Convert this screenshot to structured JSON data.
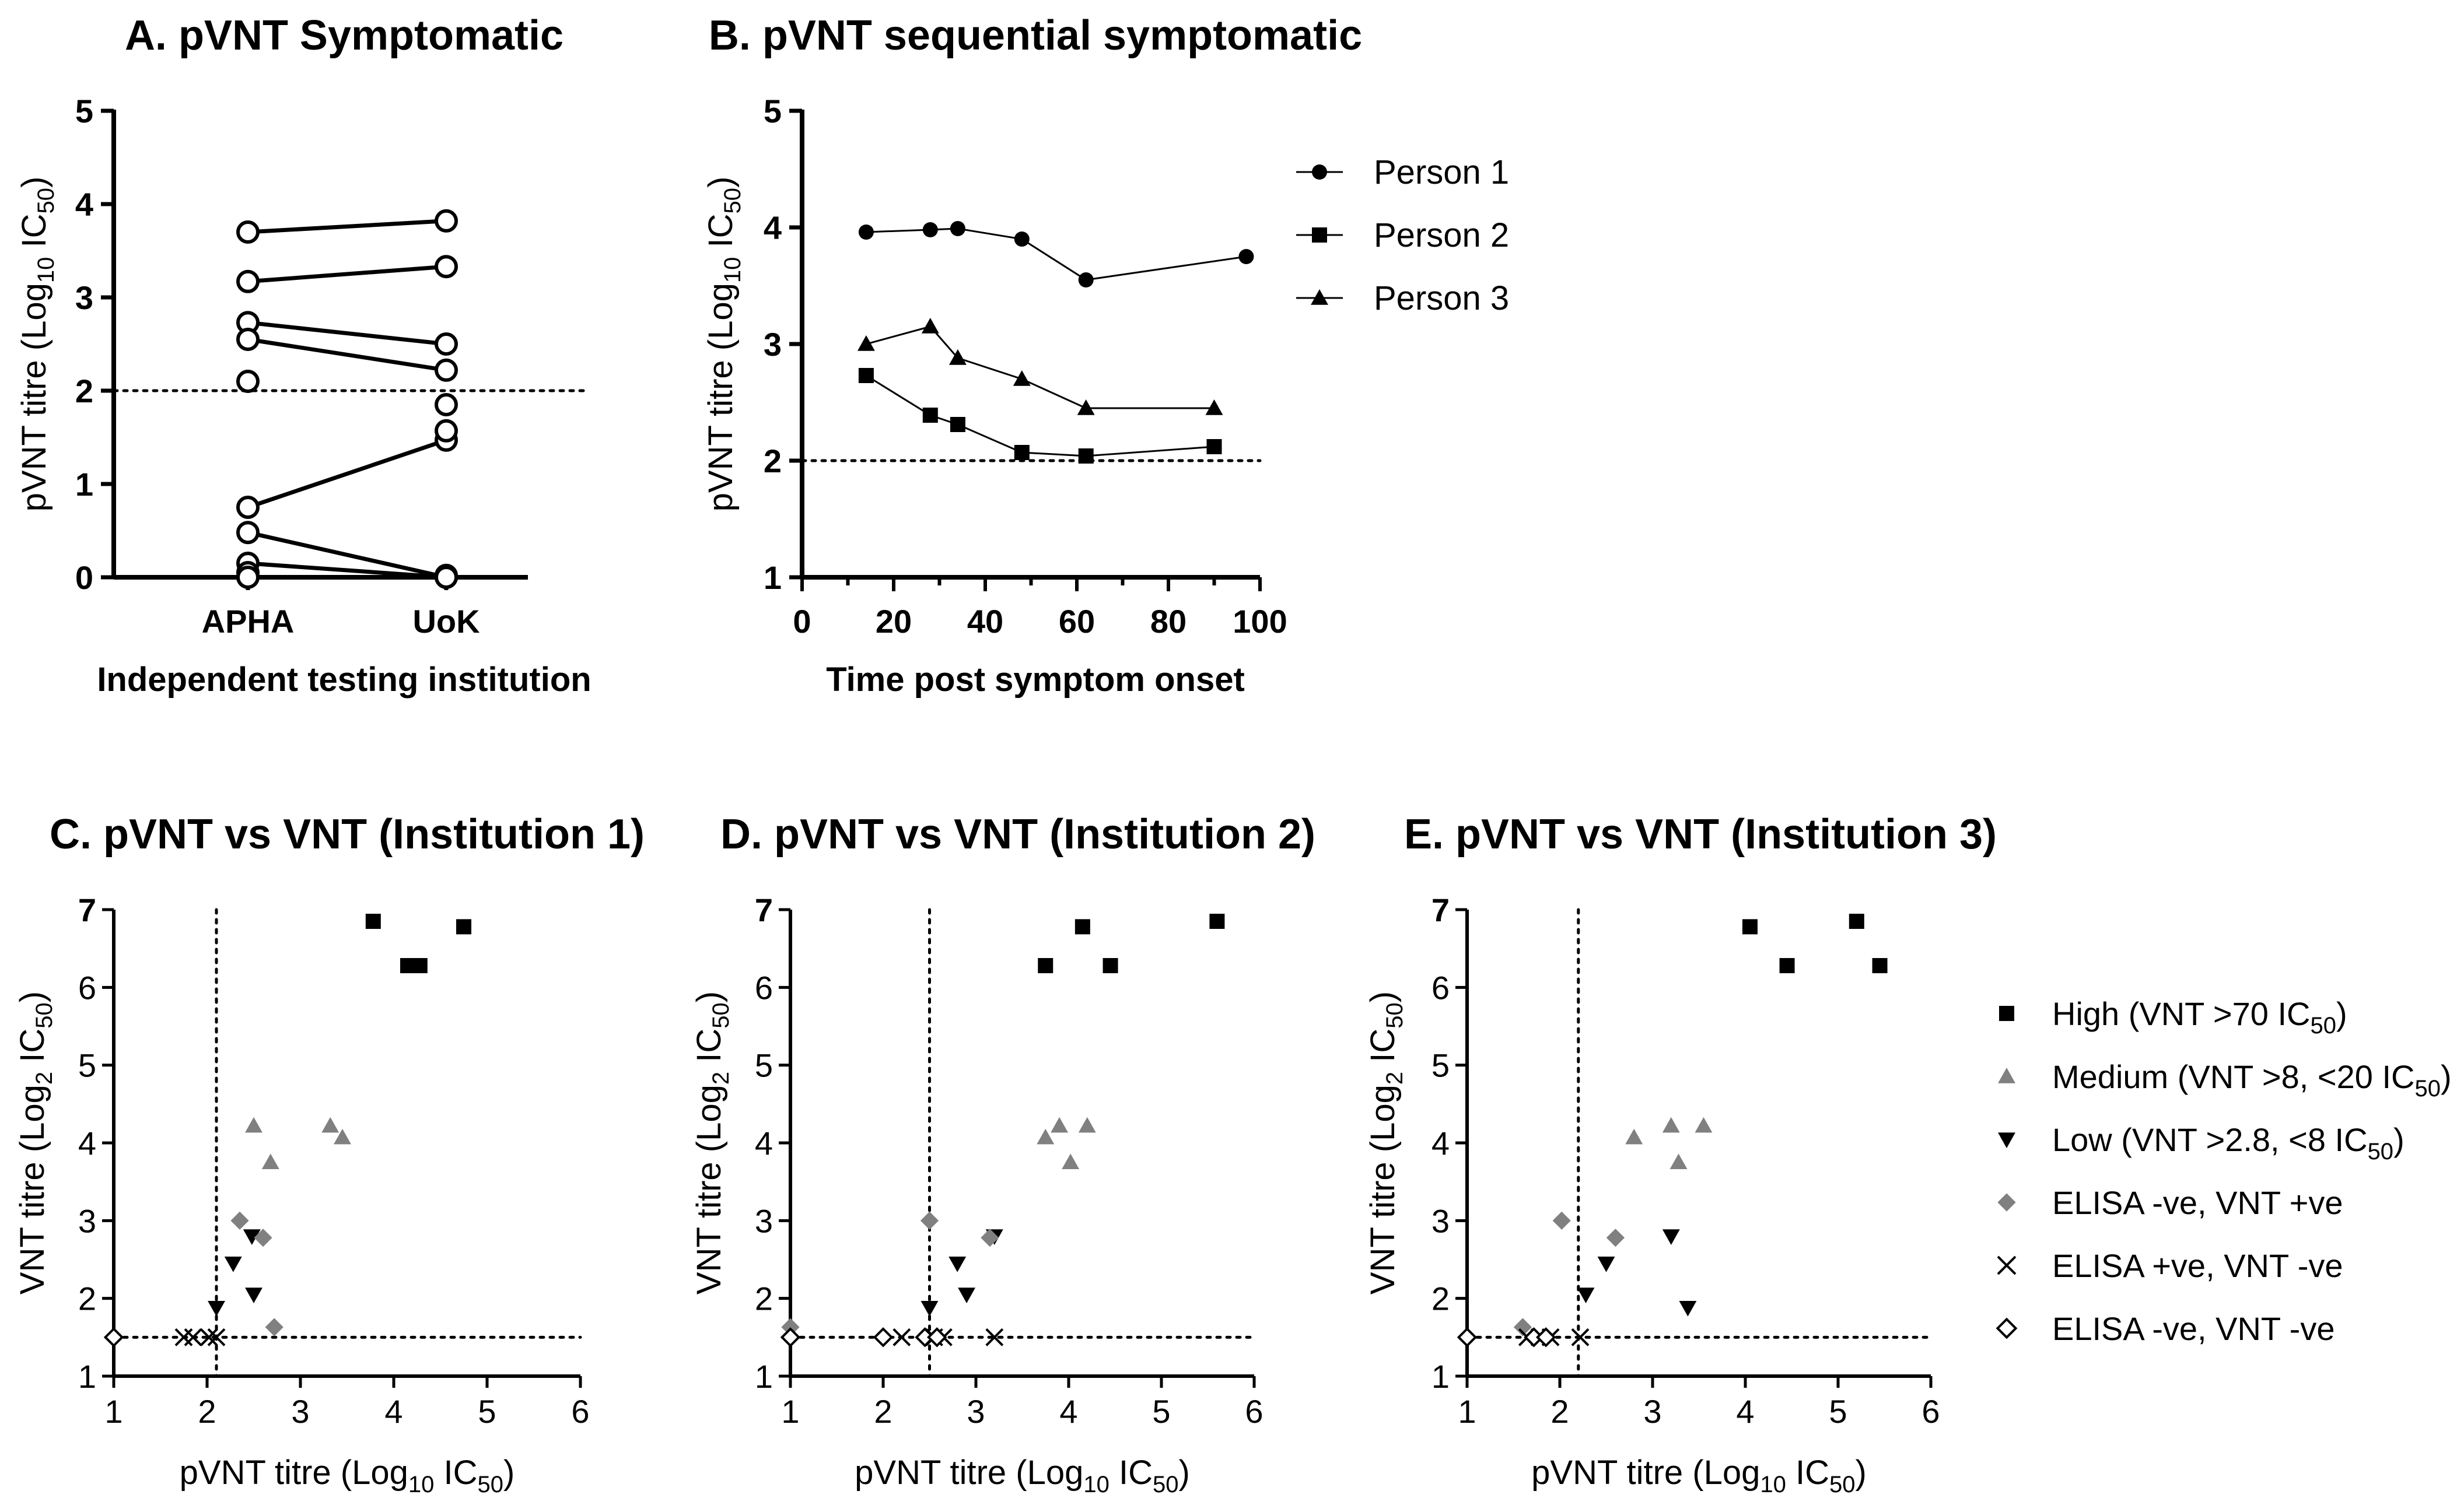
{
  "chart_data": [
    {
      "id": "A",
      "type": "line",
      "title": "A. pVNT Symptomatic",
      "xlabel": "Independent testing institution",
      "ylabel": "pVNT titre (Log10 IC50)",
      "ylabel_parts": {
        "main": "pVNT titre (Log",
        "sub1": "10",
        "mid": " IC",
        "sub2": "50",
        "end": ")"
      },
      "categories": [
        "APHA",
        "UoK"
      ],
      "ylim": [
        0,
        5
      ],
      "yticks": [
        "0",
        "1",
        "2",
        "3",
        "4",
        "5"
      ],
      "threshold": 2,
      "pairs": [
        [
          3.7,
          3.82
        ],
        [
          3.17,
          3.33
        ],
        [
          2.73,
          2.5
        ],
        [
          2.55,
          2.22
        ],
        [
          0.75,
          1.47
        ],
        [
          0.48,
          0.0
        ],
        [
          0.15,
          0.0
        ]
      ],
      "extra_points": {
        "APHA": [
          2.1,
          0.05,
          0.0
        ],
        "UoK": [
          1.85,
          1.57,
          0.02,
          0.0
        ]
      }
    },
    {
      "id": "B",
      "type": "line",
      "title": "B. pVNT sequential symptomatic",
      "xlabel": "Time post symptom onset",
      "ylabel": "pVNT titre (Log10 IC50)",
      "ylabel_parts": {
        "main": "pVNT titre (Log",
        "sub1": "10",
        "mid": " IC",
        "sub2": "50",
        "end": ")"
      },
      "xlim": [
        0,
        100
      ],
      "ylim": [
        1,
        5
      ],
      "xticks": [
        "0",
        "20",
        "40",
        "60",
        "80",
        "100"
      ],
      "yticks": [
        "1",
        "2",
        "3",
        "4",
        "5"
      ],
      "threshold": 2,
      "series": [
        {
          "name": "Person 1",
          "marker": "circle",
          "x": [
            14,
            28,
            34,
            48,
            62,
            97
          ],
          "y": [
            3.96,
            3.98,
            3.99,
            3.9,
            3.55,
            3.75
          ]
        },
        {
          "name": "Person 2",
          "marker": "square",
          "x": [
            14,
            28,
            34,
            48,
            62,
            90
          ],
          "y": [
            2.73,
            2.39,
            2.31,
            2.07,
            2.04,
            2.12
          ]
        },
        {
          "name": "Person 3",
          "marker": "triangle",
          "x": [
            14,
            28,
            34,
            48,
            62,
            90
          ],
          "y": [
            3.0,
            3.15,
            2.88,
            2.7,
            2.45,
            2.45
          ]
        }
      ]
    },
    {
      "id": "C",
      "type": "scatter",
      "title": "C. pVNT vs VNT (Institution 1)",
      "xlabel": "pVNT titre (Log10 IC50)",
      "ylabel": "VNT titre (Log2 IC50)",
      "xlabel_parts": {
        "main": "pVNT titre (Log",
        "sub1": "10",
        "mid": " IC",
        "sub2": "50",
        "end": ")"
      },
      "ylabel_parts": {
        "main": "VNT titre (Log",
        "sub1": "2",
        "mid": " IC",
        "sub2": "50",
        "end": ")"
      },
      "xlim": [
        1,
        6
      ],
      "ylim": [
        1,
        7
      ],
      "xticks": [
        "1",
        "2",
        "3",
        "4",
        "5",
        "6"
      ],
      "yticks": [
        "1",
        "2",
        "3",
        "4",
        "5",
        "6",
        "7"
      ],
      "vline": 2.1,
      "hline": 1.5,
      "groups": {
        "high": [
          [
            3.78,
            6.85
          ],
          [
            4.15,
            6.28
          ],
          [
            4.28,
            6.28
          ],
          [
            4.75,
            6.78
          ]
        ],
        "medium": [
          [
            2.5,
            4.22
          ],
          [
            2.68,
            3.75
          ],
          [
            3.32,
            4.22
          ],
          [
            3.45,
            4.07
          ]
        ],
        "low": [
          [
            2.1,
            1.88
          ],
          [
            2.28,
            2.45
          ],
          [
            2.48,
            2.8
          ],
          [
            2.5,
            2.05
          ]
        ],
        "elisa_neg_vnt_pos": [
          [
            2.35,
            3.0
          ],
          [
            2.6,
            2.78
          ],
          [
            2.72,
            1.63
          ]
        ],
        "elisa_pos_vnt_neg": [
          [
            1.75,
            1.5
          ],
          [
            1.85,
            1.5
          ],
          [
            2.02,
            1.5
          ],
          [
            2.1,
            1.5
          ]
        ],
        "elisa_neg_vnt_neg": [
          [
            1.0,
            1.5
          ]
        ]
      }
    },
    {
      "id": "D",
      "type": "scatter",
      "title": "D. pVNT vs VNT (Institution 2)",
      "xlabel": "pVNT titre (Log10 IC50)",
      "ylabel": "VNT titre (Log2 IC50)",
      "xlabel_parts": {
        "main": "pVNT titre (Log",
        "sub1": "10",
        "mid": " IC",
        "sub2": "50",
        "end": ")"
      },
      "ylabel_parts": {
        "main": "VNT titre (Log",
        "sub1": "2",
        "mid": " IC",
        "sub2": "50",
        "end": ")"
      },
      "xlim": [
        1,
        6
      ],
      "ylim": [
        1,
        7
      ],
      "xticks": [
        "1",
        "2",
        "3",
        "4",
        "5",
        "6"
      ],
      "yticks": [
        "1",
        "2",
        "3",
        "4",
        "5",
        "6",
        "7"
      ],
      "vline": 2.5,
      "hline": 1.5,
      "groups": {
        "high": [
          [
            3.75,
            6.28
          ],
          [
            4.15,
            6.78
          ],
          [
            4.45,
            6.28
          ],
          [
            5.6,
            6.85
          ]
        ],
        "medium": [
          [
            3.75,
            4.07
          ],
          [
            3.9,
            4.22
          ],
          [
            4.02,
            3.75
          ],
          [
            4.2,
            4.22
          ]
        ],
        "low": [
          [
            2.5,
            1.88
          ],
          [
            2.8,
            2.45
          ],
          [
            2.9,
            2.05
          ],
          [
            3.2,
            2.8
          ]
        ],
        "elisa_neg_vnt_pos": [
          [
            1.0,
            1.63
          ],
          [
            2.5,
            3.0
          ],
          [
            3.15,
            2.78
          ]
        ],
        "elisa_pos_vnt_neg": [
          [
            2.2,
            1.5
          ],
          [
            2.55,
            1.5
          ],
          [
            2.65,
            1.5
          ],
          [
            3.2,
            1.5
          ]
        ],
        "elisa_neg_vnt_neg": [
          [
            1.0,
            1.5
          ],
          [
            2.0,
            1.5
          ],
          [
            2.45,
            1.5
          ],
          [
            2.58,
            1.5
          ]
        ]
      }
    },
    {
      "id": "E",
      "type": "scatter",
      "title": "E. pVNT vs VNT (Institution 3)",
      "xlabel": "pVNT titre (Log10 IC50)",
      "ylabel": "VNT titre (Log2 IC50)",
      "xlabel_parts": {
        "main": "pVNT titre (Log",
        "sub1": "10",
        "mid": " IC",
        "sub2": "50",
        "end": ")"
      },
      "ylabel_parts": {
        "main": "VNT titre (Log",
        "sub1": "2",
        "mid": " IC",
        "sub2": "50",
        "end": ")"
      },
      "xlim": [
        1,
        6
      ],
      "ylim": [
        1,
        7
      ],
      "xticks": [
        "1",
        "2",
        "3",
        "4",
        "5",
        "6"
      ],
      "yticks": [
        "1",
        "2",
        "3",
        "4",
        "5",
        "6",
        "7"
      ],
      "vline": 2.2,
      "hline": 1.5,
      "groups": {
        "high": [
          [
            4.05,
            6.78
          ],
          [
            4.45,
            6.28
          ],
          [
            5.2,
            6.85
          ],
          [
            5.45,
            6.28
          ]
        ],
        "medium": [
          [
            2.8,
            4.07
          ],
          [
            3.2,
            4.22
          ],
          [
            3.28,
            3.75
          ],
          [
            3.55,
            4.22
          ]
        ],
        "low": [
          [
            2.28,
            2.05
          ],
          [
            2.5,
            2.45
          ],
          [
            3.2,
            2.8
          ],
          [
            3.38,
            1.88
          ]
        ],
        "elisa_neg_vnt_pos": [
          [
            1.6,
            1.63
          ],
          [
            2.02,
            3.0
          ],
          [
            2.6,
            2.78
          ]
        ],
        "elisa_pos_vnt_neg": [
          [
            1.65,
            1.5
          ],
          [
            1.78,
            1.5
          ],
          [
            1.9,
            1.5
          ],
          [
            2.22,
            1.5
          ]
        ],
        "elisa_neg_vnt_neg": [
          [
            1.0,
            1.5
          ],
          [
            1.72,
            1.5
          ],
          [
            1.85,
            1.5
          ]
        ]
      }
    }
  ],
  "legend_b": [
    {
      "label": "Person 1",
      "marker": "circle"
    },
    {
      "label": "Person 2",
      "marker": "square"
    },
    {
      "label": "Person 3",
      "marker": "triangle"
    }
  ],
  "legend_cde": [
    {
      "key": "high",
      "text": "High (VNT >70 IC",
      "sub": "50",
      "end": ")",
      "marker": "square",
      "color": "#000000"
    },
    {
      "key": "medium",
      "text": "Medium (VNT >8, <20 IC",
      "sub": "50",
      "end": ")",
      "marker": "triangle",
      "color": "#808080"
    },
    {
      "key": "low",
      "text": "Low (VNT >2.8, <8 IC",
      "sub": "50",
      "end": ")",
      "marker": "triangle-down",
      "color": "#000000"
    },
    {
      "key": "elisa_neg_vnt_pos",
      "text": "ELISA -ve, VNT +ve",
      "sub": "",
      "end": "",
      "marker": "diamond",
      "color": "#808080"
    },
    {
      "key": "elisa_pos_vnt_neg",
      "text": "ELISA +ve, VNT -ve",
      "sub": "",
      "end": "",
      "marker": "cross",
      "color": "#000000"
    },
    {
      "key": "elisa_neg_vnt_neg",
      "text": "ELISA -ve, VNT -ve",
      "sub": "",
      "end": "",
      "marker": "diamond-open",
      "color": "#000000"
    }
  ]
}
